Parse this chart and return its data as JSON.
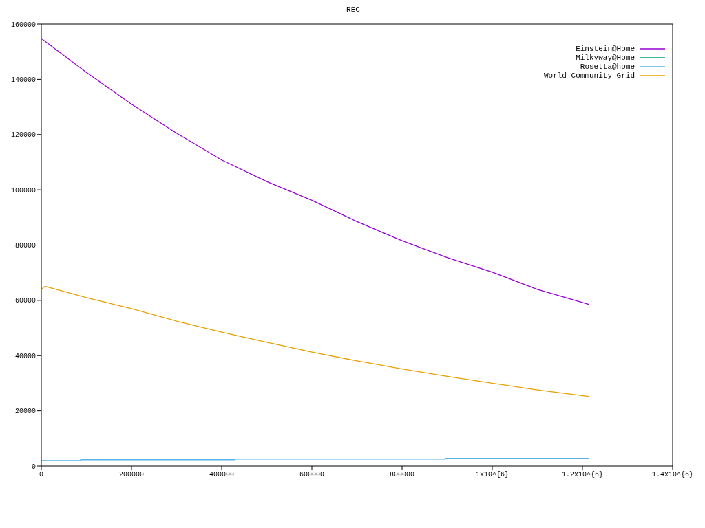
{
  "chart_data": {
    "type": "line",
    "title": "REC",
    "xlim": [
      0,
      1400000
    ],
    "ylim": [
      0,
      160000
    ],
    "xticks": [
      0,
      200000,
      400000,
      600000,
      800000,
      {
        "value": 1000000,
        "label": "1x10^{6}"
      },
      {
        "value": 1200000,
        "label": "1.2x10^{6}"
      },
      {
        "value": 1400000,
        "label": "1.4x10^{6}"
      }
    ],
    "yticks": [
      0,
      20000,
      40000,
      60000,
      80000,
      100000,
      120000,
      140000,
      160000
    ],
    "series": [
      {
        "name": "Einstein@Home",
        "color": "#9400d3",
        "x": [
          0,
          100000,
          200000,
          300000,
          400000,
          500000,
          600000,
          700000,
          800000,
          900000,
          1000000,
          1100000,
          1214000
        ],
        "values": [
          154800,
          142500,
          131000,
          120500,
          110800,
          103000,
          96200,
          88500,
          81600,
          75500,
          70200,
          64000,
          58600
        ]
      },
      {
        "name": "Milkyway@Home",
        "color": "#009e73"
      },
      {
        "name": "Rosetta@home",
        "color": "#56b4e9",
        "x": [
          0,
          87000,
          87000,
          430000,
          430000,
          895000,
          895000,
          1214000
        ],
        "values": [
          2000,
          2000,
          2300,
          2300,
          2500,
          2500,
          2800,
          2800
        ]
      },
      {
        "name": "World Community Grid",
        "color": "#e69f00",
        "x": [
          0,
          8000,
          100000,
          200000,
          300000,
          400000,
          500000,
          600000,
          700000,
          800000,
          900000,
          1000000,
          1100000,
          1214000
        ],
        "values": [
          64000,
          65100,
          61000,
          57000,
          52500,
          48500,
          44800,
          41300,
          38100,
          35200,
          32500,
          30000,
          27600,
          25200
        ]
      }
    ],
    "legend": "top right",
    "grid": false,
    "marker": "none",
    "line_style": "solid"
  }
}
